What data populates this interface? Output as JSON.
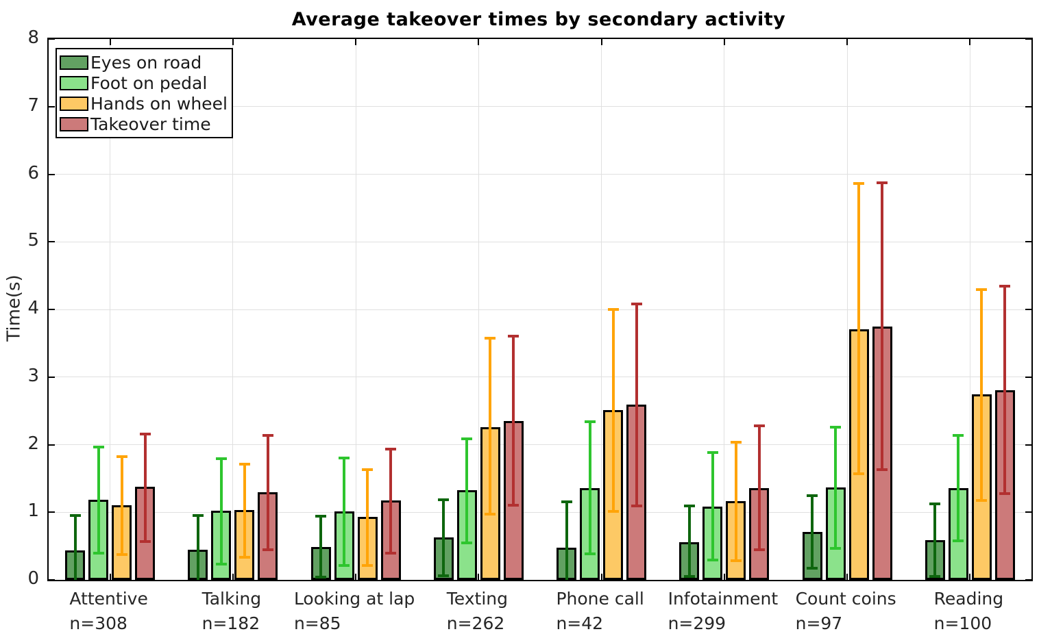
{
  "figure": {
    "title": "Average takeover times by secondary activity",
    "ylabel": "Time(s)"
  },
  "chart_data": {
    "type": "bar",
    "title": "Average takeover times by secondary activity",
    "xlabel": "",
    "ylabel": "Time(s)",
    "ylim": [
      0,
      8
    ],
    "yticks": [
      0,
      1,
      2,
      3,
      4,
      5,
      6,
      7,
      8
    ],
    "grid": true,
    "legend_position": "top-left",
    "error_bars": true,
    "categories": [
      "Attentive",
      "Talking",
      "Looking at lap",
      "Texting",
      "Phone call",
      "Infotainment",
      "Count coins",
      "Reading"
    ],
    "category_counts": [
      "n=308",
      "n=182",
      "n=85",
      "n=262",
      "n=42",
      "n=299",
      "n=97",
      "n=100"
    ],
    "series": [
      {
        "name": "Eyes on road",
        "fill": "#62A162",
        "error_color": "#0E660E",
        "values": [
          0.44,
          0.45,
          0.49,
          0.63,
          0.48,
          0.56,
          0.71,
          0.59
        ],
        "error_high": [
          0.95,
          0.95,
          0.94,
          1.18,
          1.15,
          1.09,
          1.25,
          1.12
        ],
        "error_low": [
          -0.06,
          -0.05,
          0.04,
          0.06,
          -0.18,
          0.05,
          0.17,
          0.05
        ]
      },
      {
        "name": "Foot on pedal",
        "fill": "#8BE28B",
        "error_color": "#2EC52E",
        "values": [
          1.18,
          1.02,
          1.01,
          1.33,
          1.36,
          1.08,
          1.37,
          1.36
        ],
        "error_high": [
          1.96,
          1.79,
          1.8,
          2.09,
          2.34,
          1.88,
          2.26,
          2.14
        ],
        "error_low": [
          0.4,
          0.23,
          0.21,
          0.55,
          0.38,
          0.29,
          0.47,
          0.58
        ]
      },
      {
        "name": "Hands on wheel",
        "fill": "#FDC965",
        "error_color": "#FFA408",
        "values": [
          1.1,
          1.03,
          0.93,
          2.26,
          2.51,
          1.16,
          3.71,
          2.74
        ],
        "error_high": [
          1.82,
          1.71,
          1.63,
          3.57,
          4.0,
          2.04,
          5.86,
          4.29
        ],
        "error_low": [
          0.37,
          0.33,
          0.21,
          0.97,
          1.01,
          0.28,
          1.57,
          1.17
        ]
      },
      {
        "name": "Takeover time",
        "fill": "#CC7A7A",
        "error_color": "#B23030",
        "values": [
          1.38,
          1.3,
          1.17,
          2.35,
          2.59,
          1.36,
          3.75,
          2.81
        ],
        "error_high": [
          2.16,
          2.14,
          1.93,
          3.61,
          4.08,
          2.28,
          5.87,
          4.34
        ],
        "error_low": [
          0.57,
          0.45,
          0.39,
          1.1,
          1.09,
          0.45,
          1.63,
          1.28
        ]
      }
    ]
  },
  "colors": {
    "axis": "#000000",
    "grid": "#e0e0e0",
    "tick_text": "#262626",
    "background": "#ffffff"
  }
}
